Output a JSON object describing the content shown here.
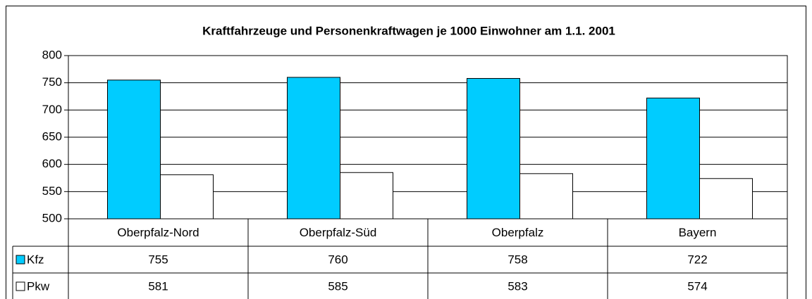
{
  "chart_data": {
    "type": "bar",
    "title": "Kraftfahrzeuge und Personenkraftwagen je 1000 Einwohner am 1.1. 2001",
    "categories": [
      "Oberpfalz-Nord",
      "Oberpfalz-Süd",
      "Oberpfalz",
      "Bayern"
    ],
    "series": [
      {
        "name": "Kfz",
        "color": "#00ccff",
        "values": [
          755,
          760,
          758,
          722
        ]
      },
      {
        "name": "Pkw",
        "color": "#ffffff",
        "values": [
          581,
          585,
          583,
          574
        ]
      }
    ],
    "ylim": [
      500,
      800
    ],
    "yticks": [
      500,
      550,
      600,
      650,
      700,
      750,
      800
    ],
    "grid": true,
    "data_table": true
  }
}
